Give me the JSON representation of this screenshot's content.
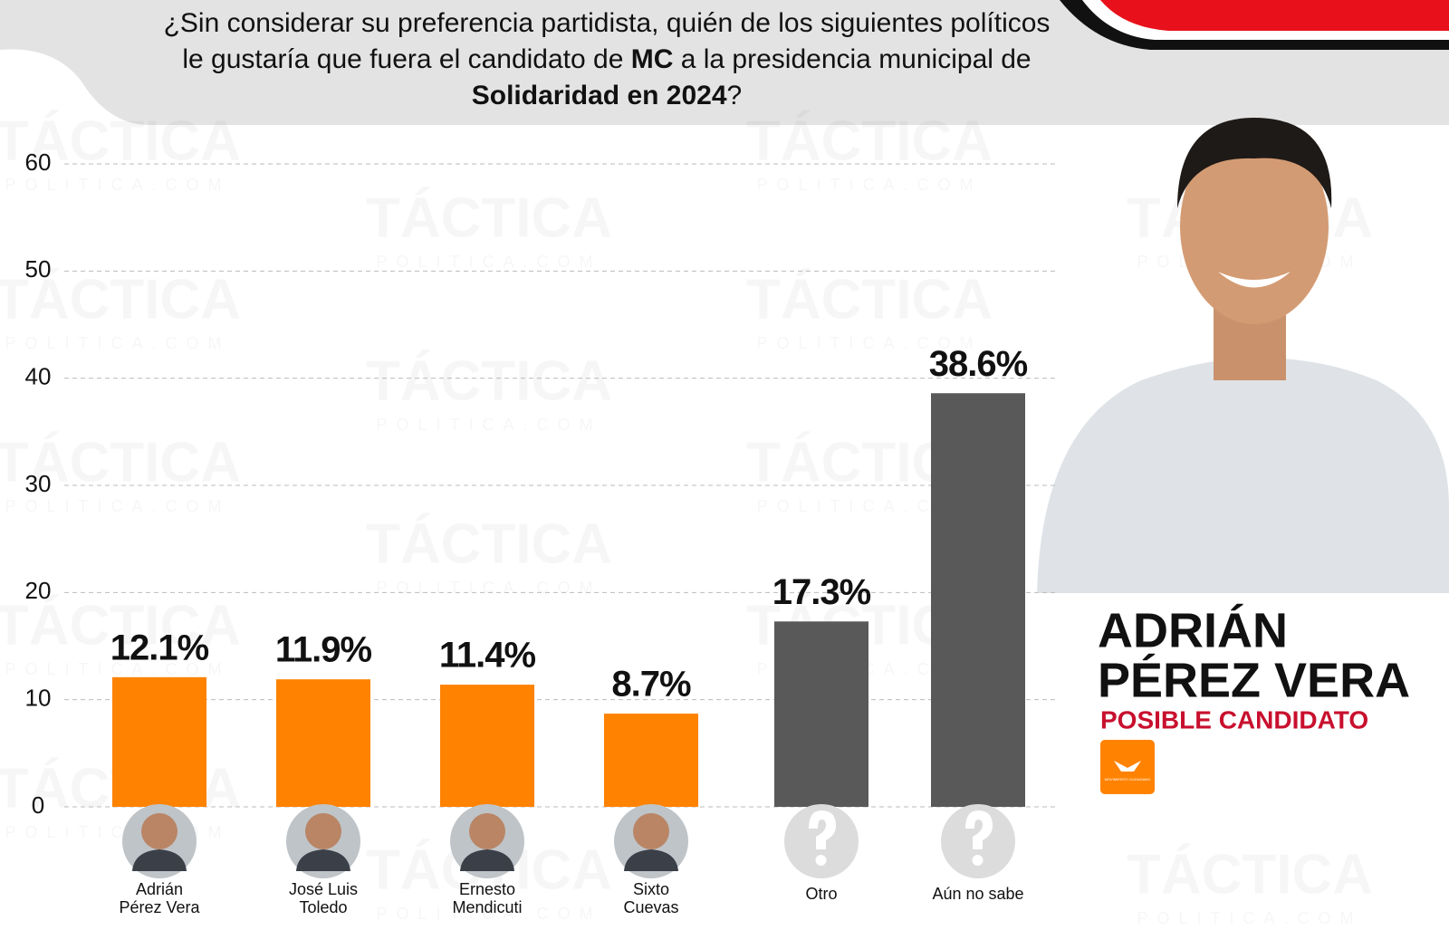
{
  "chart_data": {
    "type": "bar",
    "title_segments": [
      "¿Sin considerar su preferencia partidista, quién de los siguientes políticos le gustaría que fuera el candidato de ",
      "MC",
      " a la presidencia municipal de ",
      "Solidaridad en 2024",
      "?"
    ],
    "categories": [
      "Adrián\nPérez Vera",
      "José Luis\nToledo",
      "Ernesto\nMendicuti",
      "Sixto\nCuevas",
      "Otro",
      "Aún no sabe"
    ],
    "values": [
      12.1,
      11.9,
      11.4,
      8.7,
      17.3,
      38.6
    ],
    "value_labels": [
      "12.1%",
      "11.9%",
      "11.4%",
      "8.7%",
      "17.3%",
      "38.6%"
    ],
    "colors": [
      "#ff8200",
      "#ff8200",
      "#ff8200",
      "#ff8200",
      "#595959",
      "#595959"
    ],
    "ylim": [
      0,
      60
    ],
    "yticks": [
      0,
      10,
      20,
      30,
      40,
      50,
      60
    ],
    "grid": true
  },
  "side_panel": {
    "name_lines": [
      "ADRIÁN",
      "PÉREZ VERA"
    ],
    "subtitle": "POSIBLE CANDIDATO",
    "logo_text": "MOVIMIENTO CIUDADANO"
  },
  "watermark": {
    "brand": "TÁCTICA",
    "site": "POLITICA.COM"
  }
}
